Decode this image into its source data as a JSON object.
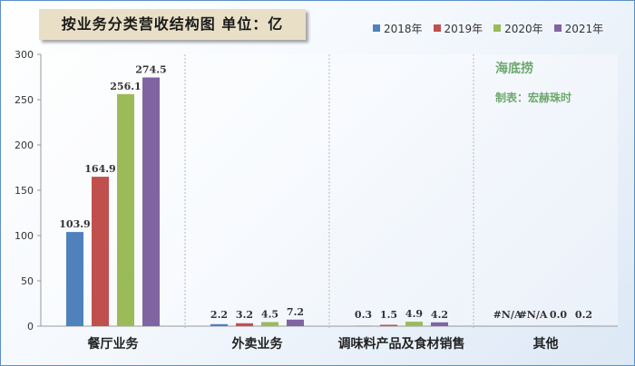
{
  "chart_data": {
    "type": "bar",
    "title": "按业务分类营收结构图 单位：亿",
    "categories": [
      "餐厅业务",
      "外卖业务",
      "调味料产品及食材销售",
      "其他"
    ],
    "series": [
      {
        "name": "2018年",
        "color": "#4f81bd",
        "values": [
          103.9,
          2.2,
          0.3,
          null
        ],
        "labels": [
          "103.9",
          "2.2",
          "0.3",
          "#N/A"
        ]
      },
      {
        "name": "2019年",
        "color": "#c0504d",
        "values": [
          164.9,
          3.2,
          1.5,
          null
        ],
        "labels": [
          "164.9",
          "3.2",
          "1.5",
          "#N/A"
        ]
      },
      {
        "name": "2020年",
        "color": "#9bbb59",
        "values": [
          256.1,
          4.5,
          4.9,
          0.0
        ],
        "labels": [
          "256.1",
          "4.5",
          "4.9",
          "0.0"
        ]
      },
      {
        "name": "2021年",
        "color": "#8064a2",
        "values": [
          274.5,
          7.2,
          4.2,
          0.2
        ],
        "labels": [
          "274.5",
          "7.2",
          "4.2",
          "0.2"
        ]
      }
    ],
    "ylim": [
      0,
      300
    ],
    "yticks": [
      0,
      50,
      100,
      150,
      200,
      250,
      300
    ],
    "legend_position": "top-right",
    "grid": false,
    "annotations": [
      "海底捞",
      "制表：宏赫珠时"
    ]
  }
}
